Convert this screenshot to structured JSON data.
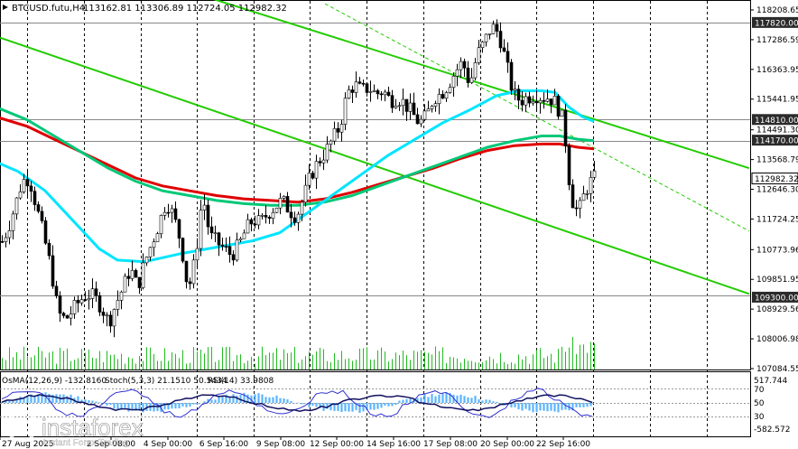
{
  "header": {
    "symbol": "BTCUSD.futu,H4",
    "ohlc": "113162.81 113306.89 112724.05 112982.32"
  },
  "indicators_header": {
    "osma": "OsMA(12,26,9) -132.8160",
    "stoch": "Stoch(5,3,3) 21.1510 50.5434",
    "rsi": "RSI(14) 33.9808"
  },
  "watermark": {
    "brand": "instaforex",
    "tagline": "Instant Forex Trading"
  },
  "colors": {
    "background": "#ffffff",
    "candle": "#000000",
    "ema_fast": "#00e5ff",
    "ema_mid": "#00c878",
    "ema_slow": "#e00000",
    "channel": "#22cc00",
    "grid": "#000000",
    "level_box": "#2b2b2b",
    "volume": "#22bb22"
  },
  "chart_data": {
    "type": "candlestick",
    "price_axis_ticks": [
      "118208.65",
      "117286.59",
      "116363.95",
      "115441.95",
      "114491.30",
      "113568.79",
      "112646.30",
      "111724.25",
      "110773.96",
      "109851.95",
      "108929.56",
      "108006.98",
      "107084.55"
    ],
    "level_labels": [
      "117820.00",
      "114810.00",
      "114170.00",
      "112982.32",
      "109300.00"
    ],
    "time_axis_ticks": [
      "27 Aug 2025",
      "2 Sep 08:00",
      "4 Sep 00:00",
      "6 Sep 16:00",
      "9 Sep 08:00",
      "12 Sep 00:00",
      "14 Sep 16:00",
      "17 Sep 08:00",
      "20 Sep 00:00",
      "22 Sep 16:00"
    ],
    "ylim": [
      106950,
      118500
    ],
    "oscillator_ticks": [
      "517.744",
      "70",
      "50",
      "30",
      "-582.572"
    ],
    "ma_fast": [
      [
        -5,
        113500
      ],
      [
        20,
        113200
      ],
      [
        50,
        112600
      ],
      [
        80,
        111700
      ],
      [
        110,
        110800
      ],
      [
        130,
        110450
      ],
      [
        160,
        110400
      ],
      [
        200,
        110650
      ],
      [
        240,
        110850
      ],
      [
        280,
        111050
      ],
      [
        310,
        111300
      ],
      [
        340,
        111900
      ],
      [
        370,
        112500
      ],
      [
        400,
        113100
      ],
      [
        430,
        113700
      ],
      [
        460,
        114200
      ],
      [
        490,
        114700
      ],
      [
        520,
        115100
      ],
      [
        550,
        115550
      ],
      [
        575,
        115700
      ],
      [
        600,
        115700
      ],
      [
        615,
        115650
      ],
      [
        630,
        115200
      ],
      [
        645,
        114900
      ],
      [
        658,
        114750
      ]
    ],
    "ma_mid": [
      [
        -5,
        115200
      ],
      [
        30,
        114800
      ],
      [
        60,
        114300
      ],
      [
        90,
        113800
      ],
      [
        120,
        113300
      ],
      [
        150,
        112900
      ],
      [
        180,
        112600
      ],
      [
        210,
        112450
      ],
      [
        240,
        112300
      ],
      [
        270,
        112200
      ],
      [
        300,
        112150
      ],
      [
        330,
        112150
      ],
      [
        360,
        112250
      ],
      [
        390,
        112450
      ],
      [
        420,
        112750
      ],
      [
        450,
        113050
      ],
      [
        480,
        113350
      ],
      [
        510,
        113650
      ],
      [
        540,
        113950
      ],
      [
        570,
        114150
      ],
      [
        600,
        114300
      ],
      [
        620,
        114300
      ],
      [
        640,
        114200
      ],
      [
        658,
        114150
      ]
    ],
    "ma_slow": [
      [
        -5,
        114900
      ],
      [
        30,
        114600
      ],
      [
        60,
        114200
      ],
      [
        90,
        113800
      ],
      [
        120,
        113400
      ],
      [
        150,
        113000
      ],
      [
        180,
        112750
      ],
      [
        210,
        112600
      ],
      [
        240,
        112450
      ],
      [
        270,
        112350
      ],
      [
        300,
        112300
      ],
      [
        330,
        112250
      ],
      [
        360,
        112350
      ],
      [
        390,
        112550
      ],
      [
        420,
        112800
      ],
      [
        450,
        113050
      ],
      [
        480,
        113300
      ],
      [
        510,
        113600
      ],
      [
        540,
        113850
      ],
      [
        570,
        114000
      ],
      [
        600,
        114050
      ],
      [
        620,
        114050
      ],
      [
        640,
        113950
      ],
      [
        658,
        113900
      ]
    ],
    "candles_close_path": [
      [
        0,
        110900
      ],
      [
        8,
        111400
      ],
      [
        16,
        112100
      ],
      [
        24,
        112900
      ],
      [
        32,
        113000
      ],
      [
        40,
        112100
      ],
      [
        48,
        111200
      ],
      [
        56,
        110200
      ],
      [
        64,
        108800
      ],
      [
        72,
        108600
      ],
      [
        80,
        108900
      ],
      [
        88,
        109200
      ],
      [
        96,
        109400
      ],
      [
        104,
        109300
      ],
      [
        112,
        109000
      ],
      [
        120,
        108500
      ],
      [
        128,
        109100
      ],
      [
        136,
        109600
      ],
      [
        144,
        110200
      ],
      [
        152,
        109600
      ],
      [
        160,
        110400
      ],
      [
        168,
        111000
      ],
      [
        176,
        111600
      ],
      [
        184,
        112300
      ],
      [
        192,
        111800
      ],
      [
        200,
        111000
      ],
      [
        208,
        109500
      ],
      [
        216,
        110500
      ],
      [
        224,
        112500
      ],
      [
        232,
        111200
      ],
      [
        240,
        111000
      ],
      [
        248,
        110800
      ],
      [
        256,
        110600
      ],
      [
        264,
        110900
      ],
      [
        272,
        111400
      ],
      [
        280,
        111700
      ],
      [
        288,
        111600
      ],
      [
        296,
        111900
      ],
      [
        304,
        112100
      ],
      [
        312,
        112300
      ],
      [
        320,
        112000
      ],
      [
        328,
        111800
      ],
      [
        336,
        112400
      ],
      [
        344,
        113100
      ],
      [
        352,
        113500
      ],
      [
        360,
        113800
      ],
      [
        368,
        114200
      ],
      [
        376,
        114600
      ],
      [
        384,
        115600
      ],
      [
        392,
        115900
      ],
      [
        400,
        115700
      ],
      [
        408,
        115800
      ],
      [
        416,
        115600
      ],
      [
        424,
        115700
      ],
      [
        432,
        115400
      ],
      [
        440,
        115500
      ],
      [
        448,
        115300
      ],
      [
        456,
        115000
      ],
      [
        464,
        114700
      ],
      [
        472,
        114900
      ],
      [
        480,
        115500
      ],
      [
        488,
        115600
      ],
      [
        496,
        115900
      ],
      [
        504,
        116300
      ],
      [
        512,
        116600
      ],
      [
        520,
        115900
      ],
      [
        528,
        116800
      ],
      [
        536,
        117200
      ],
      [
        544,
        117700
      ],
      [
        552,
        117500
      ],
      [
        560,
        116600
      ],
      [
        568,
        115600
      ],
      [
        576,
        115400
      ],
      [
        584,
        115500
      ],
      [
        592,
        115600
      ],
      [
        600,
        115500
      ],
      [
        608,
        115500
      ],
      [
        616,
        115300
      ],
      [
        624,
        114700
      ],
      [
        632,
        112400
      ],
      [
        640,
        111900
      ],
      [
        648,
        112600
      ],
      [
        656,
        112982
      ]
    ],
    "channel_upper": [
      [
        230,
        118600
      ],
      [
        830,
        113300
      ]
    ],
    "channel_lower": [
      [
        0,
        117350
      ],
      [
        830,
        109400
      ]
    ],
    "channel_mid_dashed": [
      [
        360,
        118400
      ],
      [
        830,
        111350
      ]
    ]
  }
}
